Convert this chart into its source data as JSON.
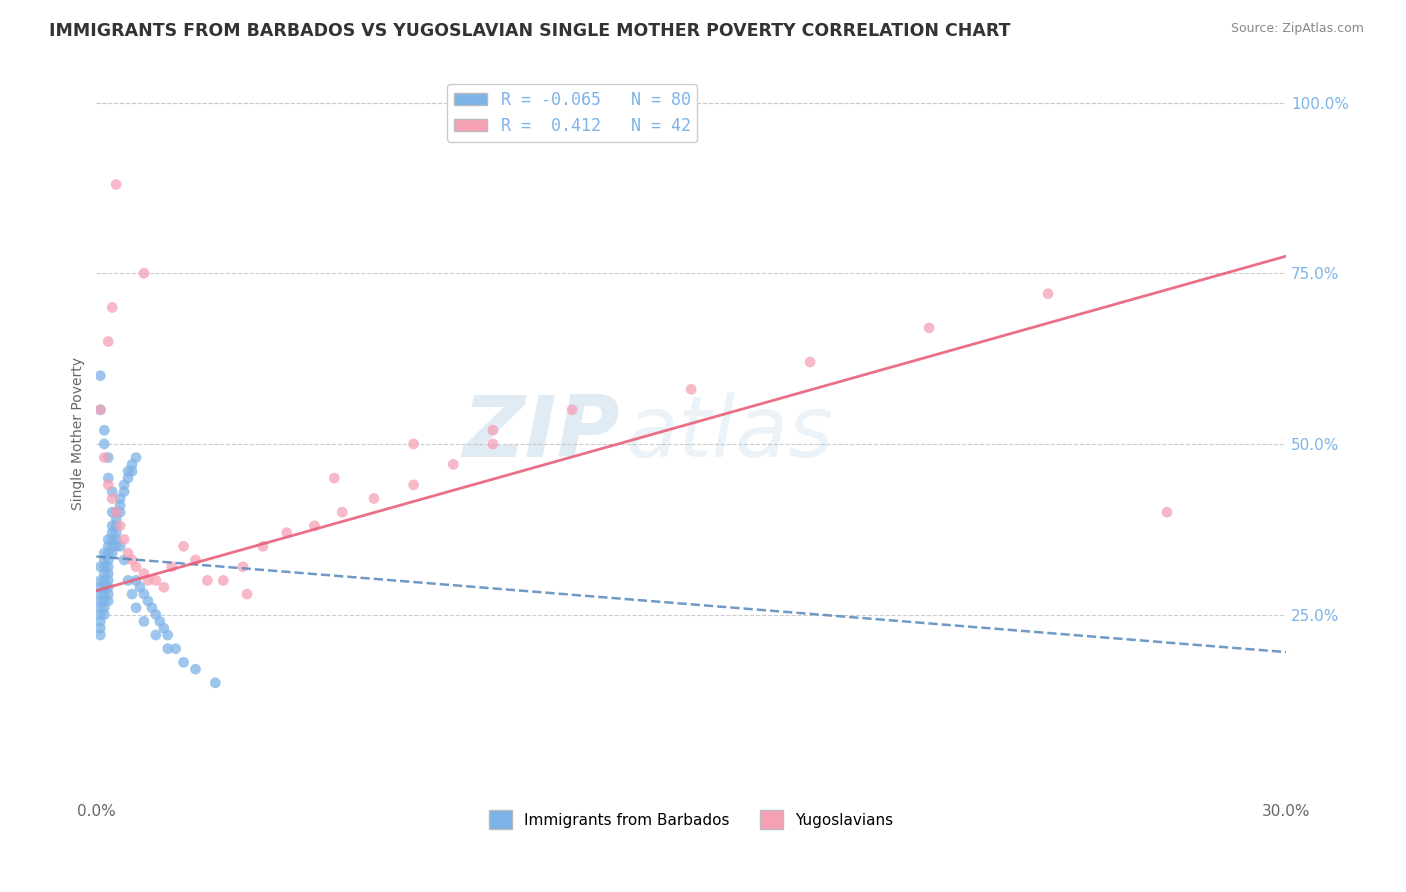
{
  "title": "IMMIGRANTS FROM BARBADOS VS YUGOSLAVIAN SINGLE MOTHER POVERTY CORRELATION CHART",
  "source": "Source: ZipAtlas.com",
  "ylabel": "Single Mother Poverty",
  "xlim": [
    0.0,
    0.3
  ],
  "ylim": [
    -0.02,
    1.05
  ],
  "ytick_positions": [
    0.25,
    0.5,
    0.75,
    1.0
  ],
  "ytick_labels": [
    "25.0%",
    "50.0%",
    "75.0%",
    "100.0%"
  ],
  "legend1_label": "R = -0.065   N = 80",
  "legend2_label": "R =  0.412   N = 42",
  "bottom_legend1": "Immigrants from Barbados",
  "bottom_legend2": "Yugoslavians",
  "blue_color": "#7EB3E8",
  "pink_color": "#F5A0B5",
  "trend_blue_color": "#5588BB",
  "trend_pink_color": "#E8607A",
  "watermark_zip": "ZIP",
  "watermark_atlas": "atlas",
  "background_color": "#FFFFFF",
  "grid_color": "#CCCCCC",
  "title_color": "#333333",
  "blue_x": [
    0.001,
    0.001,
    0.001,
    0.001,
    0.001,
    0.001,
    0.001,
    0.001,
    0.001,
    0.001,
    0.002,
    0.002,
    0.002,
    0.002,
    0.002,
    0.002,
    0.002,
    0.002,
    0.002,
    0.002,
    0.003,
    0.003,
    0.003,
    0.003,
    0.003,
    0.003,
    0.003,
    0.003,
    0.003,
    0.003,
    0.004,
    0.004,
    0.004,
    0.004,
    0.004,
    0.005,
    0.005,
    0.005,
    0.005,
    0.005,
    0.006,
    0.006,
    0.006,
    0.007,
    0.007,
    0.008,
    0.008,
    0.009,
    0.009,
    0.01,
    0.01,
    0.011,
    0.012,
    0.013,
    0.014,
    0.015,
    0.016,
    0.017,
    0.018,
    0.02,
    0.001,
    0.001,
    0.002,
    0.002,
    0.003,
    0.003,
    0.004,
    0.004,
    0.005,
    0.006,
    0.007,
    0.008,
    0.009,
    0.01,
    0.012,
    0.015,
    0.018,
    0.022,
    0.025,
    0.03
  ],
  "blue_y": [
    0.32,
    0.3,
    0.29,
    0.28,
    0.27,
    0.26,
    0.25,
    0.24,
    0.23,
    0.22,
    0.34,
    0.33,
    0.32,
    0.31,
    0.3,
    0.29,
    0.28,
    0.27,
    0.26,
    0.25,
    0.36,
    0.35,
    0.34,
    0.33,
    0.32,
    0.31,
    0.3,
    0.29,
    0.28,
    0.27,
    0.38,
    0.37,
    0.36,
    0.35,
    0.34,
    0.4,
    0.39,
    0.37,
    0.36,
    0.35,
    0.42,
    0.41,
    0.4,
    0.44,
    0.43,
    0.46,
    0.45,
    0.47,
    0.46,
    0.48,
    0.3,
    0.29,
    0.28,
    0.27,
    0.26,
    0.25,
    0.24,
    0.23,
    0.22,
    0.2,
    0.6,
    0.55,
    0.52,
    0.5,
    0.48,
    0.45,
    0.43,
    0.4,
    0.38,
    0.35,
    0.33,
    0.3,
    0.28,
    0.26,
    0.24,
    0.22,
    0.2,
    0.18,
    0.17,
    0.15
  ],
  "pink_x": [
    0.001,
    0.002,
    0.003,
    0.003,
    0.004,
    0.004,
    0.005,
    0.006,
    0.007,
    0.008,
    0.009,
    0.01,
    0.012,
    0.013,
    0.015,
    0.017,
    0.019,
    0.022,
    0.025,
    0.028,
    0.032,
    0.037,
    0.042,
    0.048,
    0.055,
    0.062,
    0.07,
    0.08,
    0.09,
    0.1,
    0.06,
    0.08,
    0.1,
    0.12,
    0.15,
    0.18,
    0.21,
    0.24,
    0.27,
    0.038,
    0.005,
    0.012
  ],
  "pink_y": [
    0.55,
    0.48,
    0.44,
    0.65,
    0.42,
    0.7,
    0.4,
    0.38,
    0.36,
    0.34,
    0.33,
    0.32,
    0.31,
    0.3,
    0.3,
    0.29,
    0.32,
    0.35,
    0.33,
    0.3,
    0.3,
    0.32,
    0.35,
    0.37,
    0.38,
    0.4,
    0.42,
    0.44,
    0.47,
    0.5,
    0.45,
    0.5,
    0.52,
    0.55,
    0.58,
    0.62,
    0.67,
    0.72,
    0.4,
    0.28,
    0.88,
    0.75
  ],
  "blue_trend_x0": 0.0,
  "blue_trend_y0": 0.335,
  "blue_trend_x1": 0.3,
  "blue_trend_y1": 0.195,
  "pink_trend_x0": 0.0,
  "pink_trend_y0": 0.285,
  "pink_trend_x1": 0.3,
  "pink_trend_y1": 0.775
}
